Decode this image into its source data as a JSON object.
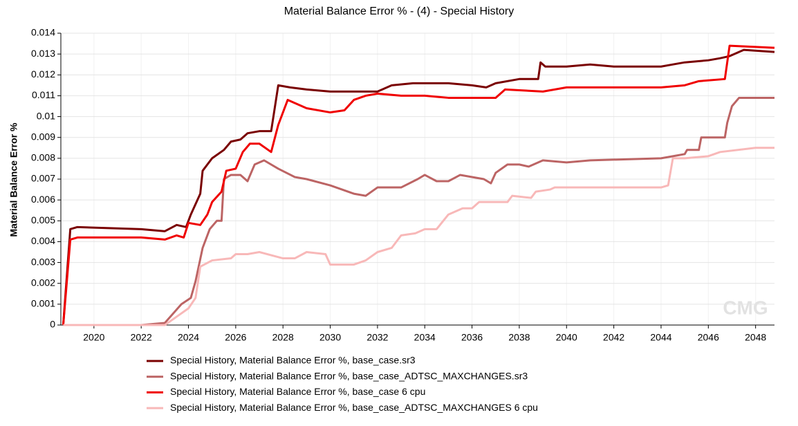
{
  "chart_data": {
    "type": "line",
    "title": "Material Balance Error % - (4) - Special History",
    "y_label": "Material Balance Error %",
    "watermark": "CMG",
    "xlim": [
      2018.6,
      2048.8
    ],
    "xticks": [
      2020,
      2022,
      2024,
      2026,
      2028,
      2030,
      2032,
      2034,
      2036,
      2038,
      2040,
      2042,
      2044,
      2046,
      2048
    ],
    "ylim": [
      0,
      0.014
    ],
    "yticks": [
      0,
      0.001,
      0.002,
      0.003,
      0.004,
      0.005,
      0.006,
      0.007,
      0.008,
      0.009,
      0.01,
      0.011,
      0.012,
      0.013,
      0.014
    ],
    "grid": true,
    "legend": "bottom",
    "series": [
      {
        "name": "Special History, Material Balance Error %, base_case.sr3",
        "color": "#7a0000",
        "x": [
          2018.7,
          2019.0,
          2019.3,
          2022,
          2023,
          2023.5,
          2023.9,
          2024.1,
          2024.5,
          2024.6,
          2025,
          2025.5,
          2025.8,
          2026.2,
          2026.5,
          2027,
          2027.5,
          2027.8,
          2028.3,
          2029,
          2030,
          2031,
          2032,
          2032.6,
          2033.5,
          2035,
          2036,
          2036.6,
          2037,
          2038,
          2038.8,
          2038.9,
          2039.1,
          2040,
          2041,
          2042,
          2044,
          2044.5,
          2045,
          2046,
          2046.5,
          2046.9,
          2047.1,
          2047.5,
          2048.8
        ],
        "values": [
          0,
          0.0046,
          0.0047,
          0.0046,
          0.0045,
          0.0048,
          0.0047,
          0.0053,
          0.0063,
          0.0074,
          0.008,
          0.0084,
          0.0088,
          0.0089,
          0.0092,
          0.0093,
          0.0093,
          0.0115,
          0.0114,
          0.0113,
          0.0112,
          0.0112,
          0.0112,
          0.0115,
          0.0116,
          0.0116,
          0.0115,
          0.0114,
          0.0116,
          0.0118,
          0.0118,
          0.0126,
          0.0124,
          0.0124,
          0.0125,
          0.0124,
          0.0124,
          0.0125,
          0.0126,
          0.0127,
          0.0128,
          0.0129,
          0.013,
          0.0132,
          0.0131
        ]
      },
      {
        "name": "Special History,  Material Balance Error %, base_case_ADTSC_MAXCHANGES.sr3",
        "color": "#bc6464",
        "x": [
          2018.7,
          2022,
          2023,
          2023.7,
          2024.1,
          2024.3,
          2024.6,
          2024.9,
          2025.2,
          2025.4,
          2025.5,
          2025.8,
          2026.2,
          2026.5,
          2026.8,
          2027.2,
          2027.8,
          2028.5,
          2029,
          2030,
          2030.5,
          2031,
          2031.5,
          2032,
          2033,
          2033.7,
          2034,
          2034.5,
          2035,
          2035.5,
          2036.5,
          2036.8,
          2037,
          2037.5,
          2038,
          2038.4,
          2039,
          2040,
          2041,
          2044,
          2044.5,
          2045,
          2045.1,
          2045.6,
          2045.7,
          2046.7,
          2046.8,
          2047,
          2047.3,
          2048.8
        ],
        "values": [
          0,
          0,
          0.0001,
          0.001,
          0.0013,
          0.0021,
          0.0037,
          0.0046,
          0.005,
          0.005,
          0.007,
          0.0072,
          0.0072,
          0.0069,
          0.0077,
          0.0079,
          0.0075,
          0.0071,
          0.007,
          0.0067,
          0.0065,
          0.0063,
          0.0062,
          0.0066,
          0.0066,
          0.007,
          0.0072,
          0.0069,
          0.0069,
          0.0072,
          0.007,
          0.0068,
          0.0073,
          0.0077,
          0.0077,
          0.0076,
          0.0079,
          0.0078,
          0.0079,
          0.008,
          0.0081,
          0.0082,
          0.0084,
          0.0084,
          0.009,
          0.009,
          0.0097,
          0.0105,
          0.0109,
          0.0109
        ]
      },
      {
        "name": "Special History, Material Balance Error %, base_case 6 cpu",
        "color": "#f00000",
        "x": [
          2018.7,
          2019.0,
          2019.3,
          2022,
          2023,
          2023.5,
          2023.8,
          2024,
          2024.5,
          2024.8,
          2025,
          2025.4,
          2025.6,
          2026,
          2026.3,
          2026.6,
          2027,
          2027.5,
          2027.8,
          2028.2,
          2029,
          2030,
          2030.6,
          2031,
          2031.5,
          2032,
          2033,
          2034,
          2035,
          2036,
          2037,
          2037.4,
          2039,
          2040,
          2042,
          2044,
          2045,
          2045.6,
          2046.7,
          2046.9,
          2048.8
        ],
        "values": [
          0,
          0.0041,
          0.0042,
          0.0042,
          0.0041,
          0.0043,
          0.0042,
          0.0049,
          0.0048,
          0.0053,
          0.0059,
          0.0064,
          0.0074,
          0.0075,
          0.0083,
          0.0087,
          0.0087,
          0.0083,
          0.0096,
          0.0108,
          0.0104,
          0.0102,
          0.0103,
          0.0108,
          0.011,
          0.0111,
          0.011,
          0.011,
          0.0109,
          0.0109,
          0.0109,
          0.0113,
          0.0112,
          0.0114,
          0.0114,
          0.0114,
          0.0115,
          0.0117,
          0.0118,
          0.0134,
          0.0133
        ]
      },
      {
        "name": "Special History,  Material Balance Error %, base_case_ADTSC_MAXCHANGES 6 cpu",
        "color": "#f8b8b8",
        "x": [
          2018.7,
          2023,
          2023.5,
          2024,
          2024.3,
          2024.5,
          2025,
          2025.8,
          2026,
          2026.5,
          2027,
          2028,
          2028.5,
          2029,
          2029.8,
          2030,
          2031,
          2031.5,
          2032,
          2032.6,
          2033,
          2033.6,
          2034,
          2034.5,
          2035,
          2035.6,
          2036,
          2036.3,
          2037.5,
          2037.7,
          2038.5,
          2038.7,
          2039.3,
          2039.5,
          2044,
          2044.3,
          2044.5,
          2045,
          2046,
          2046.5,
          2048,
          2048.8
        ],
        "values": [
          0,
          0,
          0.0004,
          0.0008,
          0.0013,
          0.0028,
          0.0031,
          0.0032,
          0.0034,
          0.0034,
          0.0035,
          0.0032,
          0.0032,
          0.0035,
          0.0034,
          0.0029,
          0.0029,
          0.0031,
          0.0035,
          0.0037,
          0.0043,
          0.0044,
          0.0046,
          0.0046,
          0.0053,
          0.0056,
          0.0056,
          0.0059,
          0.0059,
          0.0062,
          0.0061,
          0.0064,
          0.0065,
          0.0066,
          0.0066,
          0.0067,
          0.008,
          0.008,
          0.0081,
          0.0083,
          0.0085,
          0.0085
        ]
      }
    ]
  }
}
